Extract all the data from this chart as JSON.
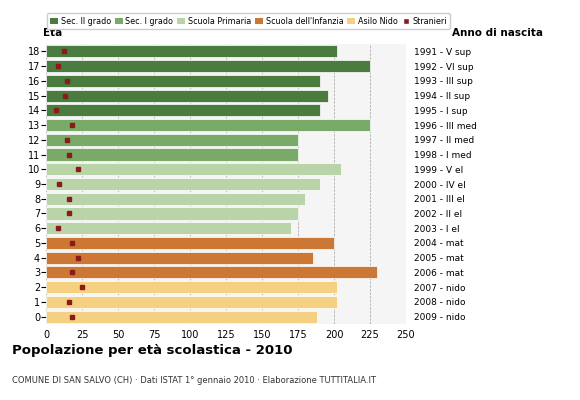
{
  "ages": [
    18,
    17,
    16,
    15,
    14,
    13,
    12,
    11,
    10,
    9,
    8,
    7,
    6,
    5,
    4,
    3,
    2,
    1,
    0
  ],
  "bar_values": [
    202,
    225,
    190,
    196,
    190,
    225,
    175,
    175,
    205,
    190,
    180,
    175,
    170,
    200,
    185,
    230,
    202,
    202,
    188
  ],
  "stranieri": [
    12,
    8,
    14,
    13,
    7,
    18,
    14,
    16,
    22,
    9,
    16,
    16,
    8,
    18,
    22,
    18,
    25,
    16,
    18
  ],
  "year_labels": [
    "1991 - V sup",
    "1992 - VI sup",
    "1993 - III sup",
    "1994 - II sup",
    "1995 - I sup",
    "1996 - III med",
    "1997 - II med",
    "1998 - I med",
    "1999 - V el",
    "2000 - IV el",
    "2001 - III el",
    "2002 - II el",
    "2003 - I el",
    "2004 - mat",
    "2005 - mat",
    "2006 - mat",
    "2007 - nido",
    "2008 - nido",
    "2009 - nido"
  ],
  "colors": {
    "sec2": "#4a7c40",
    "sec1": "#7aaa68",
    "primaria": "#b8d4a8",
    "infanzia": "#cc7733",
    "nido": "#f5d080",
    "stranieri": "#8b1a1a"
  },
  "legend_labels": [
    "Sec. II grado",
    "Sec. I grado",
    "Scuola Primaria",
    "Scuola dell'Infanzia",
    "Asilo Nido",
    "Stranieri"
  ],
  "title": "Popolazione per età scolastica - 2010",
  "subtitle": "COMUNE DI SAN SALVO (CH) · Dati ISTAT 1° gennaio 2010 · Elaborazione TUTTITALIA.IT",
  "eta_label": "Età",
  "anno_label": "Anno di nascita",
  "xlim": [
    0,
    250
  ],
  "xticks": [
    0,
    25,
    50,
    75,
    100,
    125,
    150,
    175,
    200,
    225,
    250
  ]
}
